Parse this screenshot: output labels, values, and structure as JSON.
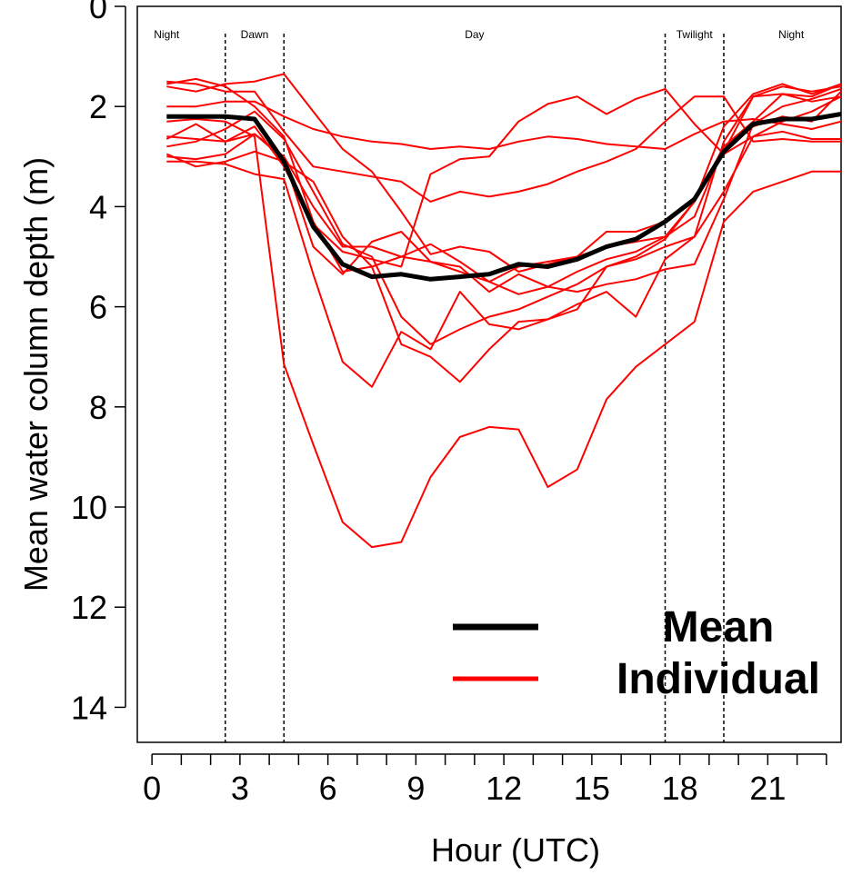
{
  "chart_data": {
    "type": "line",
    "xlabel": "Hour (UTC)",
    "ylabel": "Mean water column depth (m)",
    "xlim": [
      -0.5,
      23.5
    ],
    "ylim": [
      0,
      14.7
    ],
    "y_inverted": true,
    "x_ticks": [
      0,
      3,
      6,
      9,
      12,
      15,
      18,
      21
    ],
    "x_minor_ticks": [
      0,
      1,
      2,
      3,
      4,
      5,
      6,
      7,
      8,
      9,
      10,
      11,
      12,
      13,
      14,
      15,
      16,
      17,
      18,
      19,
      20,
      21,
      22,
      23
    ],
    "y_ticks": [
      0,
      2,
      4,
      6,
      8,
      10,
      12,
      14
    ],
    "period_boundaries": [
      2.5,
      4.5,
      17.5,
      19.5
    ],
    "periods": [
      {
        "label": "Night",
        "x": 0.5
      },
      {
        "label": "Dawn",
        "x": 3.5
      },
      {
        "label": "Day",
        "x": 11
      },
      {
        "label": "Twilight",
        "x": 18.5
      },
      {
        "label": "Night",
        "x": 21.8
      }
    ],
    "x": [
      0.5,
      1.5,
      2.5,
      3.5,
      4.5,
      5.5,
      6.5,
      7.5,
      8.5,
      9.5,
      10.5,
      11.5,
      12.5,
      13.5,
      14.5,
      15.5,
      16.5,
      17.5,
      18.5,
      19.5,
      20.5,
      21.5,
      22.5,
      23.5
    ],
    "series": [
      {
        "name": "Mean",
        "color": "#000000",
        "width": 5,
        "values": [
          2.2,
          2.2,
          2.2,
          2.25,
          3.1,
          4.4,
          5.15,
          5.4,
          5.35,
          5.45,
          5.4,
          5.35,
          5.15,
          5.2,
          5.05,
          4.8,
          4.65,
          4.3,
          3.85,
          2.9,
          2.35,
          2.25,
          2.25,
          2.15
        ]
      },
      {
        "name": "Individual",
        "color": "#ff0000",
        "width": 2,
        "values": [
          1.55,
          1.45,
          1.6,
          2.0,
          2.6,
          4.3,
          5.3,
          5.2,
          5.0,
          5.1,
          5.3,
          5.5,
          5.2,
          5.1,
          5.0,
          4.8,
          4.7,
          4.6,
          3.9,
          2.9,
          1.8,
          1.6,
          1.7,
          1.6
        ]
      },
      {
        "name": "Individual",
        "color": "#ff0000",
        "width": 2,
        "values": [
          1.6,
          1.7,
          1.55,
          1.5,
          1.35,
          2.1,
          2.85,
          3.3,
          4.1,
          4.95,
          4.8,
          4.9,
          5.3,
          5.15,
          5.0,
          4.5,
          4.5,
          4.3,
          3.9,
          2.4,
          1.75,
          1.55,
          1.75,
          1.55
        ]
      },
      {
        "name": "Individual",
        "color": "#ff0000",
        "width": 2,
        "values": [
          2.0,
          2.0,
          1.9,
          1.9,
          2.2,
          2.45,
          2.6,
          2.7,
          2.75,
          2.85,
          2.8,
          2.85,
          2.7,
          2.6,
          2.65,
          2.75,
          2.8,
          2.85,
          2.55,
          2.3,
          2.25,
          2.35,
          2.45,
          2.3
        ]
      },
      {
        "name": "Individual",
        "color": "#ff0000",
        "width": 2,
        "values": [
          1.5,
          1.55,
          1.7,
          1.7,
          2.5,
          3.2,
          3.3,
          3.4,
          3.5,
          3.9,
          3.7,
          3.8,
          3.7,
          3.55,
          3.3,
          3.1,
          2.85,
          2.3,
          1.8,
          1.8,
          2.7,
          2.65,
          2.7,
          2.7
        ]
      },
      {
        "name": "Individual",
        "color": "#ff0000",
        "width": 2,
        "values": [
          2.6,
          2.65,
          2.7,
          2.55,
          3.0,
          4.0,
          4.8,
          4.8,
          5.0,
          4.75,
          5.1,
          5.5,
          5.75,
          5.6,
          5.3,
          5.05,
          4.9,
          4.6,
          4.2,
          2.8,
          2.4,
          2.2,
          2.3,
          1.7
        ]
      },
      {
        "name": "Individual",
        "color": "#ff0000",
        "width": 2,
        "values": [
          2.8,
          2.7,
          2.45,
          2.1,
          2.65,
          3.7,
          4.75,
          5.0,
          6.2,
          6.75,
          6.45,
          6.2,
          6.05,
          5.8,
          5.55,
          5.2,
          5.0,
          4.65,
          3.9,
          2.8,
          2.3,
          1.75,
          1.9,
          1.8
        ]
      },
      {
        "name": "Individual",
        "color": "#ff0000",
        "width": 2,
        "values": [
          3.0,
          3.05,
          2.95,
          2.55,
          3.05,
          4.8,
          5.35,
          4.7,
          4.5,
          5.1,
          5.2,
          5.7,
          5.35,
          5.6,
          5.7,
          5.55,
          5.45,
          5.25,
          5.15,
          3.85,
          2.35,
          2.0,
          1.85,
          1.65
        ]
      },
      {
        "name": "Individual",
        "color": "#ff0000",
        "width": 2,
        "values": [
          2.95,
          3.2,
          3.1,
          2.9,
          3.1,
          3.5,
          4.6,
          5.2,
          6.75,
          7.0,
          7.5,
          6.85,
          6.3,
          6.25,
          5.95,
          5.7,
          6.2,
          5.05,
          4.6,
          3.7,
          2.6,
          2.3,
          2.1,
          1.8
        ]
      },
      {
        "name": "Individual",
        "color": "#ff0000",
        "width": 2,
        "values": [
          3.1,
          3.1,
          3.15,
          3.35,
          3.45,
          5.35,
          7.1,
          7.6,
          6.5,
          6.85,
          5.7,
          6.35,
          6.45,
          6.25,
          6.05,
          5.2,
          5.05,
          4.8,
          4.6,
          2.7,
          1.8,
          1.75,
          1.8,
          1.55
        ]
      },
      {
        "name": "Individual",
        "color": "#ff0000",
        "width": 2,
        "values": [
          2.3,
          2.25,
          2.3,
          2.6,
          7.15,
          8.75,
          10.3,
          10.8,
          10.7,
          9.4,
          8.6,
          8.4,
          8.45,
          9.6,
          9.25,
          7.85,
          7.2,
          6.75,
          6.3,
          4.3,
          3.7,
          3.5,
          3.3,
          3.3
        ]
      },
      {
        "name": "Individual",
        "color": "#ff0000",
        "width": 2,
        "values": [
          2.65,
          2.35,
          2.7,
          2.4,
          3.2,
          4.35,
          4.9,
          5.05,
          5.2,
          3.35,
          3.05,
          3.0,
          2.3,
          1.95,
          1.8,
          2.15,
          1.85,
          1.65,
          2.35,
          2.95,
          2.6,
          2.5,
          2.65,
          2.65
        ]
      }
    ],
    "legend": {
      "position": "bottom-right",
      "entries": [
        {
          "label": "Mean",
          "color": "#000000"
        },
        {
          "label": "Individual",
          "color": "#ff0000"
        }
      ]
    },
    "grid": false
  }
}
